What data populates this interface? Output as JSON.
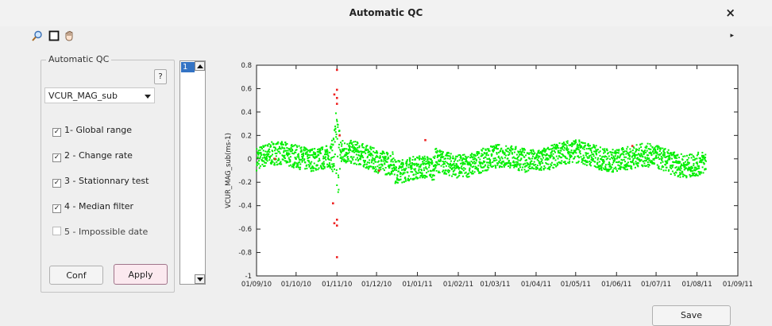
{
  "window": {
    "title": "Automatic QC",
    "close_label": "×"
  },
  "toolbar": {
    "icons": [
      "zoom-icon",
      "select-rect-icon",
      "pan-hand-icon"
    ],
    "overflow": "▸"
  },
  "panel": {
    "title": "Automatic QC",
    "help_label": "?",
    "variable_select": {
      "value": "VCUR_MAG_sub"
    },
    "tests": [
      {
        "label": "1- Global range",
        "checked": true
      },
      {
        "label": "2 - Change rate",
        "checked": true
      },
      {
        "label": "3 - Stationnary test",
        "checked": true
      },
      {
        "label": "4 - Median filter",
        "checked": true
      },
      {
        "label": "5 - Impossible date",
        "checked": false
      }
    ],
    "conf_label": "Conf",
    "apply_label": "Apply"
  },
  "listbox": {
    "items": [
      "1"
    ],
    "selected": "1"
  },
  "save_label": "Save",
  "colors": {
    "good": "#00ee00",
    "bad": "#ee2222",
    "selection": "#3373c4"
  },
  "chart_data": {
    "type": "scatter",
    "ylabel": "VCUR_MAG_sub(ms-1)",
    "ylim": [
      -1,
      0.8
    ],
    "yticks": [
      "0.8",
      "0.6",
      "0.4",
      "0.2",
      "0",
      "-0.2",
      "-0.4",
      "-0.6",
      "-0.8",
      "-1"
    ],
    "xticks": [
      "01/09/10",
      "01/10/10",
      "01/11/10",
      "01/12/10",
      "01/01/11",
      "01/02/11",
      "01/03/11",
      "01/04/11",
      "01/05/11",
      "01/06/11",
      "01/07/11",
      "01/08/11",
      "01/09/11"
    ],
    "xlim": [
      "2010-09-01",
      "2011-09-01"
    ],
    "data_range": [
      "2010-09-01",
      "2011-08-08"
    ],
    "series": [
      {
        "color": "#00ee00",
        "description": "good flagged samples, oscillating about 0 within roughly ±0.15, with large spread (-0.45 to 0.4) around 2010-11-01"
      },
      {
        "color": "#ee2222",
        "description": "bad flagged samples",
        "points": [
          [
            "2010-11-01",
            0.76
          ],
          [
            "2010-11-01",
            0.59
          ],
          [
            "2010-10-30",
            0.55
          ],
          [
            "2010-11-01",
            0.52
          ],
          [
            "2010-11-01",
            0.47
          ],
          [
            "2010-11-01",
            -0.52
          ],
          [
            "2010-11-01",
            -0.57
          ],
          [
            "2010-10-30",
            -0.55
          ],
          [
            "2010-11-01",
            -0.84
          ],
          [
            "2010-11-03",
            0.2
          ],
          [
            "2010-10-29",
            -0.38
          ],
          [
            "2011-01-07",
            0.16
          ],
          [
            "2010-12-03",
            -0.1
          ],
          [
            "2011-06-13",
            0.11
          ],
          [
            "2010-09-15",
            0.0
          ]
        ]
      }
    ]
  }
}
